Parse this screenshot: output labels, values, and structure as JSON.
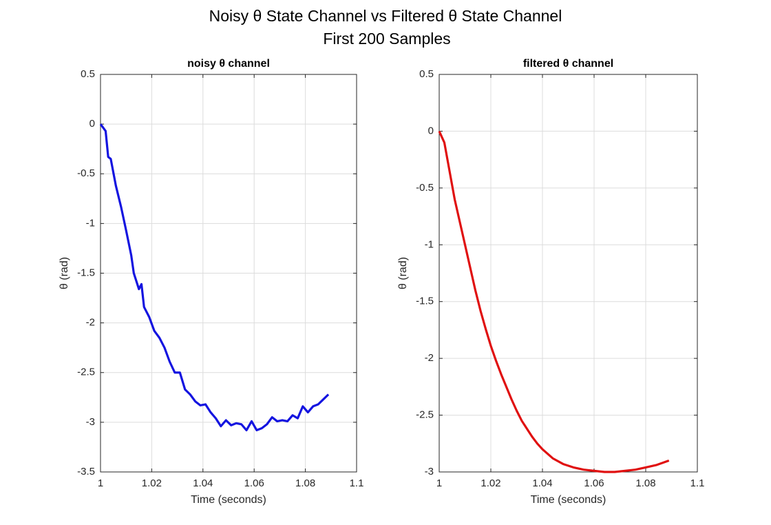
{
  "title": "Noisy θ State Channel vs Filtered θ State Channel",
  "subtitle": "First 200 Samples",
  "chart_data": [
    {
      "type": "line",
      "title": "noisy θ channel",
      "xlabel": "Time (seconds)",
      "ylabel": "θ (rad)",
      "color": "#1414e0",
      "grid": true,
      "xlim": [
        1,
        1.1
      ],
      "xticks": [
        1,
        1.02,
        1.04,
        1.06,
        1.08,
        1.1
      ],
      "ylim": [
        -3.5,
        0.5
      ],
      "yticks": [
        -3.5,
        -3,
        -2.5,
        -2,
        -1.5,
        -1,
        -0.5,
        0,
        0.5
      ],
      "x": [
        1.0,
        1.002,
        1.003,
        1.004,
        1.006,
        1.008,
        1.01,
        1.012,
        1.013,
        1.015,
        1.016,
        1.017,
        1.019,
        1.021,
        1.023,
        1.025,
        1.027,
        1.029,
        1.031,
        1.033,
        1.035,
        1.037,
        1.039,
        1.041,
        1.043,
        1.045,
        1.047,
        1.049,
        1.051,
        1.053,
        1.055,
        1.057,
        1.059,
        1.061,
        1.063,
        1.065,
        1.067,
        1.069,
        1.071,
        1.073,
        1.075,
        1.077,
        1.079,
        1.081,
        1.083,
        1.085,
        1.087,
        1.089
      ],
      "values": [
        0,
        -0.07,
        -0.33,
        -0.35,
        -0.62,
        -0.83,
        -1.07,
        -1.32,
        -1.5,
        -1.66,
        -1.61,
        -1.84,
        -1.94,
        -2.08,
        -2.15,
        -2.25,
        -2.39,
        -2.5,
        -2.5,
        -2.67,
        -2.72,
        -2.79,
        -2.83,
        -2.82,
        -2.9,
        -2.96,
        -3.04,
        -2.98,
        -3.03,
        -3.01,
        -3.02,
        -3.08,
        -2.99,
        -3.08,
        -3.06,
        -3.02,
        -2.95,
        -2.99,
        -2.98,
        -2.99,
        -2.93,
        -2.96,
        -2.84,
        -2.9,
        -2.84,
        -2.82,
        -2.77,
        -2.72
      ]
    },
    {
      "type": "line",
      "title": "filtered θ channel",
      "xlabel": "Time (seconds)",
      "ylabel": "θ (rad)",
      "color": "#e01010",
      "grid": true,
      "xlim": [
        1,
        1.1
      ],
      "xticks": [
        1,
        1.02,
        1.04,
        1.06,
        1.08,
        1.1
      ],
      "ylim": [
        -3,
        0.5
      ],
      "yticks": [
        -3,
        -2.5,
        -2,
        -1.5,
        -1,
        -0.5,
        0,
        0.5
      ],
      "x": [
        1.0,
        1.002,
        1.004,
        1.006,
        1.008,
        1.01,
        1.012,
        1.014,
        1.016,
        1.018,
        1.02,
        1.022,
        1.024,
        1.026,
        1.028,
        1.03,
        1.032,
        1.034,
        1.036,
        1.038,
        1.04,
        1.044,
        1.048,
        1.052,
        1.056,
        1.06,
        1.064,
        1.068,
        1.072,
        1.076,
        1.08,
        1.084,
        1.089
      ],
      "values": [
        0,
        -0.1,
        -0.35,
        -0.6,
        -0.8,
        -1.0,
        -1.2,
        -1.4,
        -1.58,
        -1.74,
        -1.89,
        -2.02,
        -2.14,
        -2.25,
        -2.36,
        -2.46,
        -2.55,
        -2.62,
        -2.69,
        -2.75,
        -2.8,
        -2.88,
        -2.93,
        -2.96,
        -2.98,
        -2.99,
        -3.0,
        -3.0,
        -2.99,
        -2.98,
        -2.96,
        -2.94,
        -2.9
      ]
    }
  ]
}
